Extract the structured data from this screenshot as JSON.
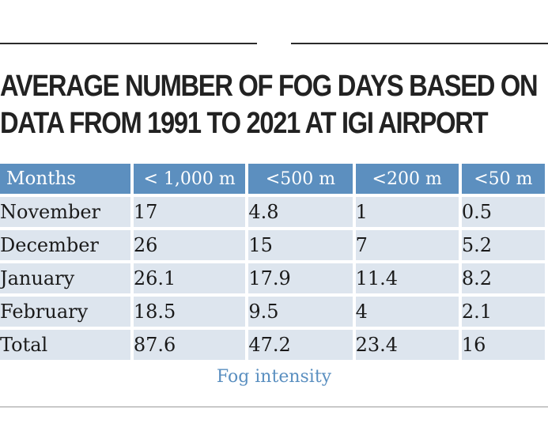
{
  "title_lines": [
    "AVERAGE NUMBER OF FOG DAYS BASED ON",
    "DATA FROM 1991 TO 2021 AT IGI AIRPORT"
  ],
  "chart_data": {
    "type": "table",
    "title": "AVERAGE NUMBER OF FOG DAYS BASED ON DATA FROM 1991 TO 2021 AT IGI AIRPORT",
    "columns": [
      "Months",
      "< 1,000 m",
      "<500 m",
      "<200 m",
      "<50 m"
    ],
    "rows": [
      [
        "November",
        "17",
        "4.8",
        "1",
        "0.5"
      ],
      [
        "December",
        "26",
        "15",
        "7",
        "5.2"
      ],
      [
        "January",
        "26.1",
        "17.9",
        "11.4",
        "8.2"
      ],
      [
        "February",
        "18.5",
        "9.5",
        "4",
        "2.1"
      ],
      [
        "Total",
        "87.6",
        "47.2",
        "23.4",
        "16"
      ]
    ],
    "caption": "Fog intensity",
    "colors": {
      "header": "#5c8fbf",
      "cell": "#dde5ee",
      "caption": "#5a8fc0"
    }
  }
}
